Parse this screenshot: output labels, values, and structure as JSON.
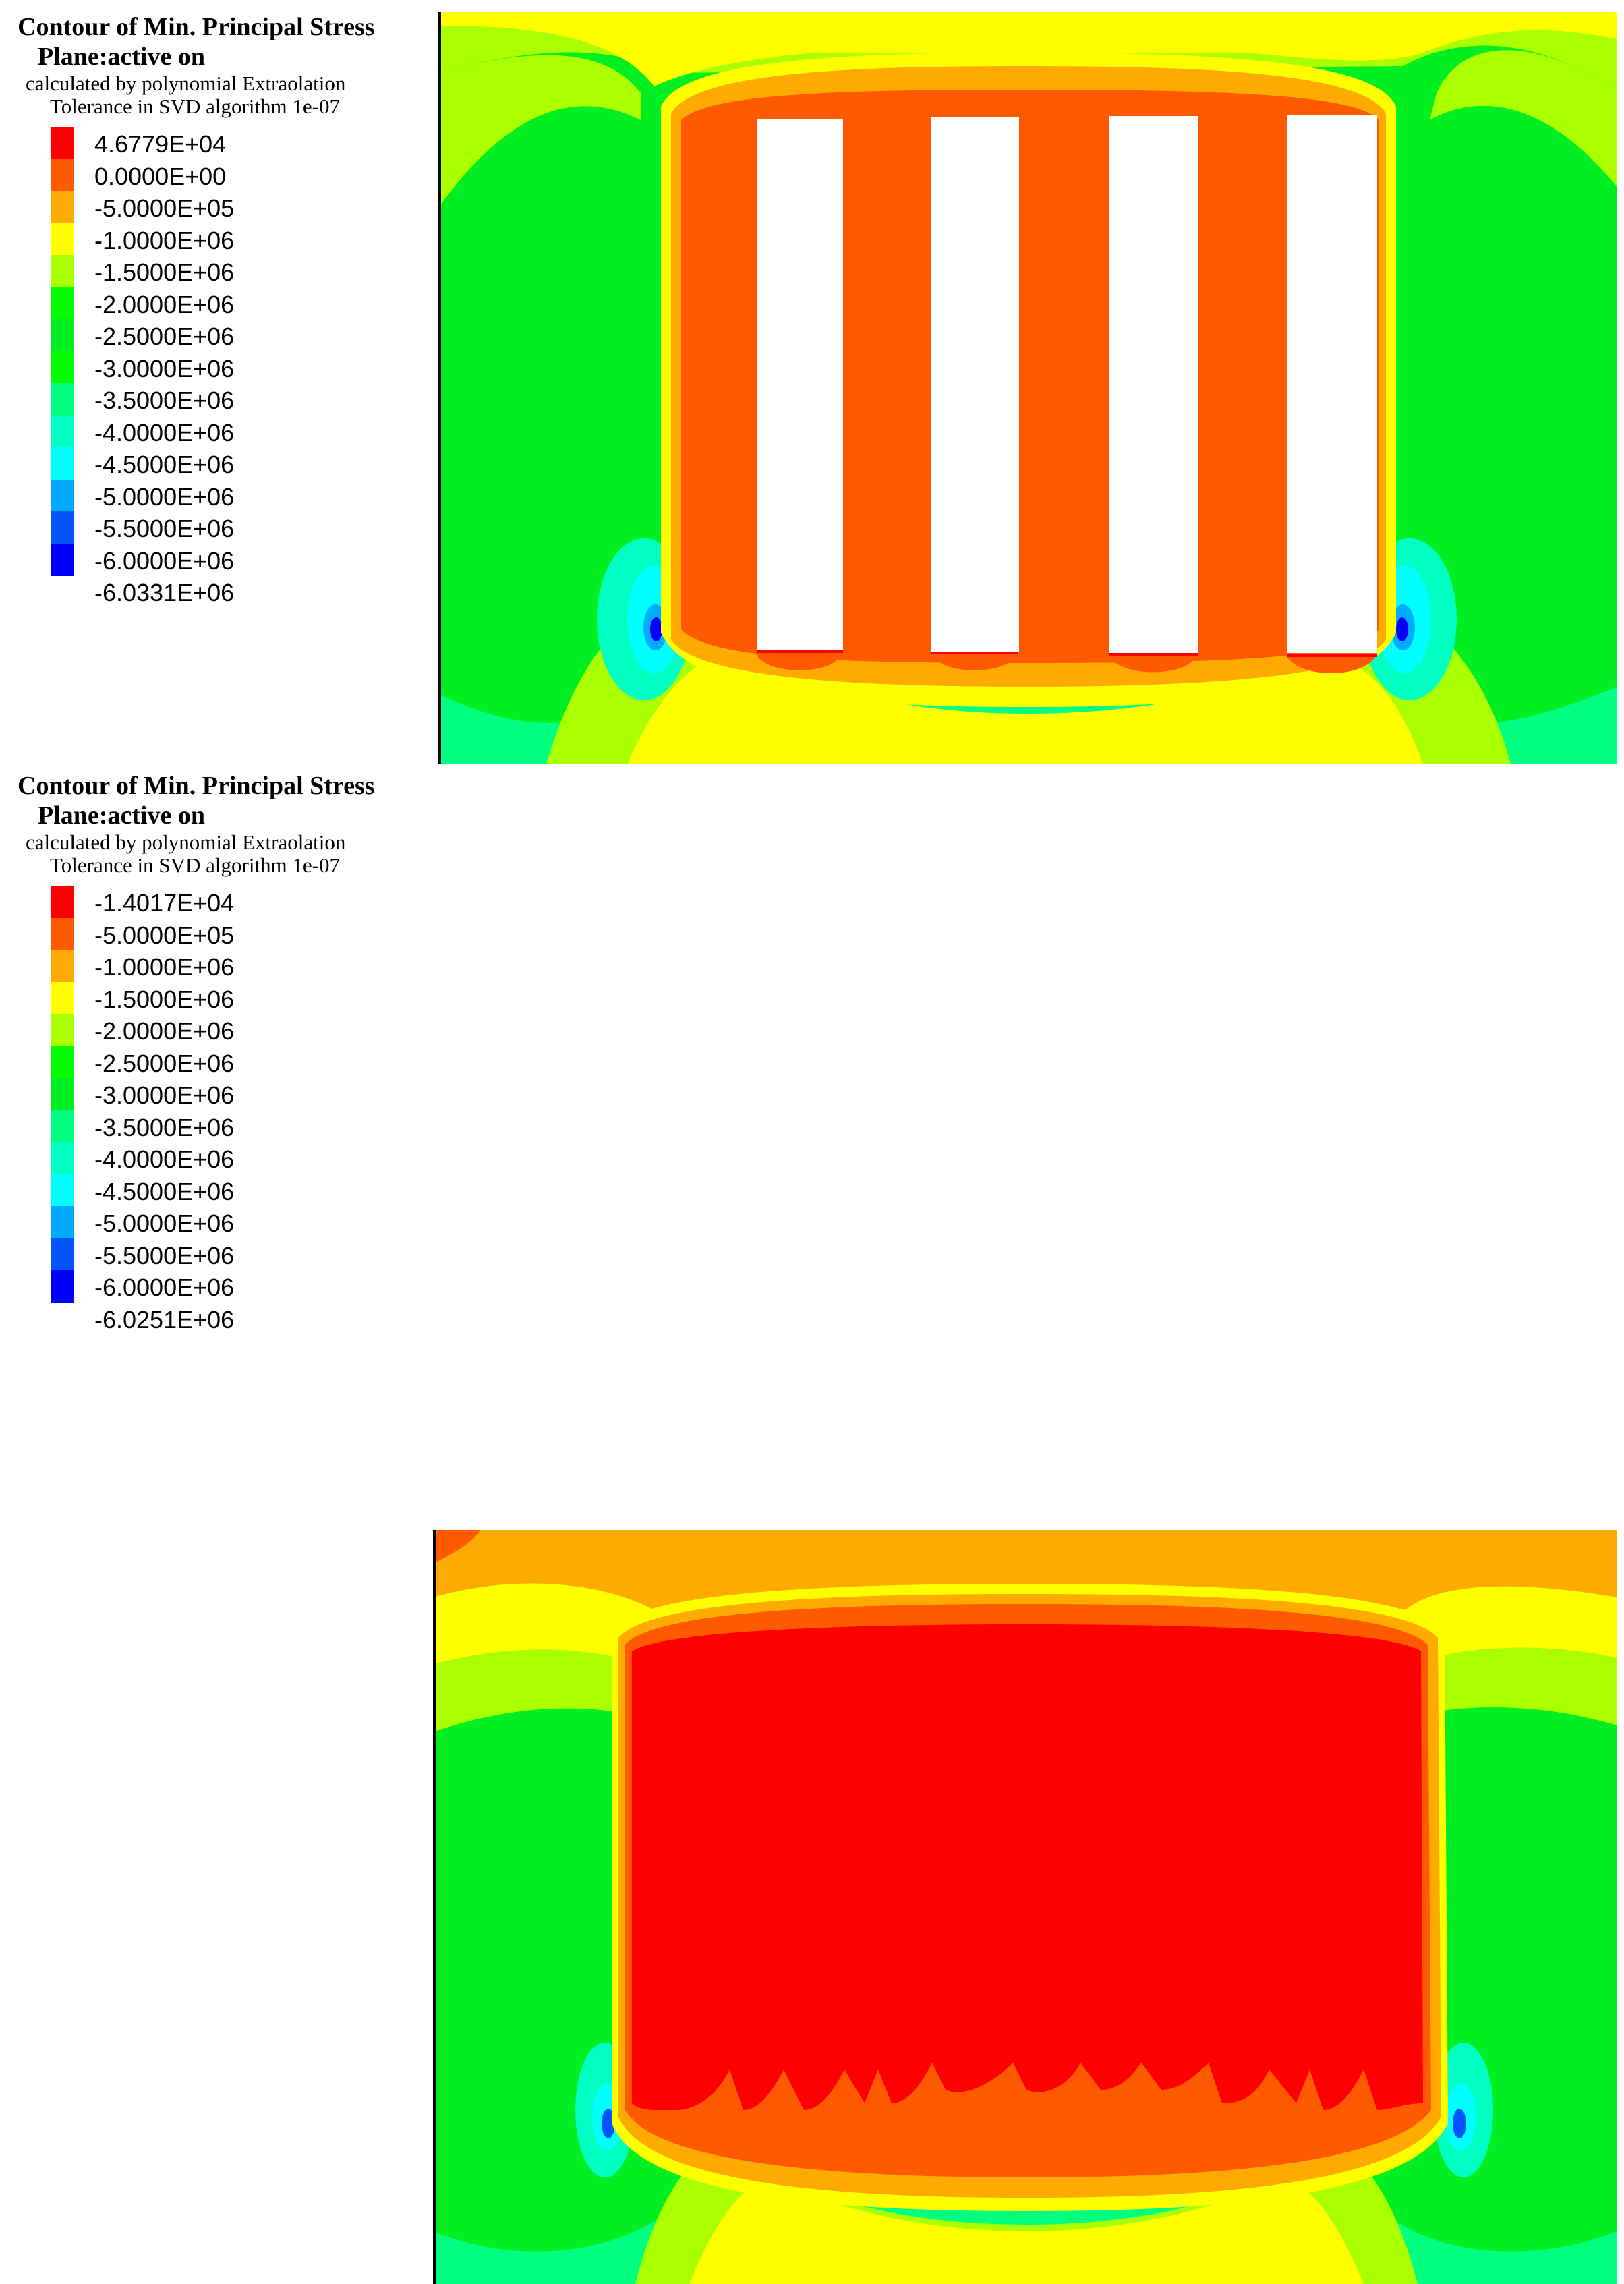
{
  "panels": [
    {
      "title": "Contour of Min. Principal Stress",
      "plane": "Plane:active on",
      "calculated": "calculated by polynomial Extraolation",
      "tolerance": "Tolerance in SVD algorithm 1e-07",
      "levels": [
        "4.6779E+04",
        "0.0000E+00",
        "-5.0000E+05",
        "-1.0000E+06",
        "-1.5000E+06",
        "-2.0000E+06",
        "-2.5000E+06",
        "-3.0000E+06",
        "-3.5000E+06",
        "-4.0000E+06",
        "-4.5000E+06",
        "-5.0000E+06",
        "-5.5000E+06",
        "-6.0000E+06",
        "-6.0331E+06"
      ]
    },
    {
      "title": "Contour of Min. Principal Stress",
      "plane": "Plane:active on",
      "calculated": "calculated by polynomial Extraolation",
      "tolerance": "Tolerance in SVD algorithm 1e-07",
      "levels": [
        "-1.4017E+04",
        "-5.0000E+05",
        "-1.0000E+06",
        "-1.5000E+06",
        "-2.0000E+06",
        "-2.5000E+06",
        "-3.0000E+06",
        "-3.5000E+06",
        "-4.0000E+06",
        "-4.5000E+06",
        "-5.0000E+06",
        "-5.5000E+06",
        "-6.0000E+06",
        "-6.0251E+06"
      ]
    }
  ],
  "colors": {
    "red": "#ff0000",
    "red_orange": "#ff5a00",
    "orange": "#ffaa00",
    "yellow": "#ffff00",
    "yellow_green": "#aaff00",
    "green": "#00ff00",
    "mid_green": "#00ee22",
    "spring_green": "#00ff80",
    "aqua_green": "#00ffc0",
    "cyan": "#00ffff",
    "sky_blue": "#00aaff",
    "blue": "#0055ff",
    "deep_blue": "#0000ff"
  }
}
